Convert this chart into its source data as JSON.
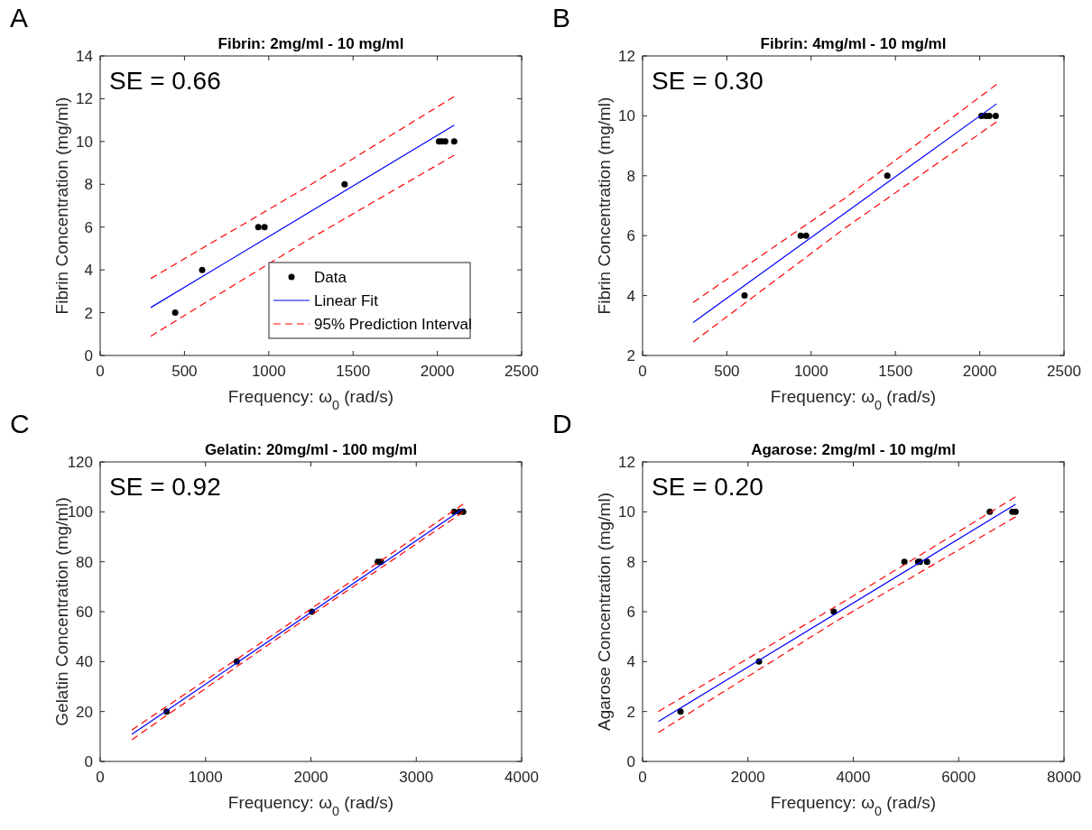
{
  "chart_data": [
    {
      "type": "scatter",
      "title": "Fibrin: 2mg/ml - 10 mg/ml",
      "xlabel": "Frequency: ω$_{0}$ (rad/s)",
      "ylabel": "Fibrin Concentration (mg/ml)",
      "xlim": [
        0,
        2500
      ],
      "ylim": [
        0,
        14
      ],
      "xticks": [
        0,
        500,
        1000,
        1500,
        2000,
        2500
      ],
      "yticks": [
        0,
        2,
        4,
        6,
        8,
        10,
        12,
        14
      ],
      "annotations": [
        "A",
        "SE = 0.66"
      ],
      "legend": "bottom right",
      "series": [
        {
          "type": "scatter",
          "name": "Data",
          "color": "#000000",
          "marker": "circle",
          "x": [
            445,
            605,
            938,
            975,
            1450,
            2010,
            2026,
            2047,
            2100
          ],
          "values": [
            2,
            4,
            6,
            6,
            8,
            10,
            10,
            10,
            10
          ]
        },
        {
          "type": "line",
          "name": "Linear Fit",
          "color": "#0000ff",
          "x": [
            300,
            2100
          ],
          "values": [
            2.24,
            10.76
          ]
        },
        {
          "type": "line",
          "name": "95% Prediction Interval",
          "color": "#ff0000",
          "line_style": "dashed",
          "x": [
            300,
            1200,
            2100
          ],
          "values": [
            3.6,
            7.75,
            12.1
          ]
        },
        {
          "type": "line",
          "color": "#ff0000",
          "line_style": "dashed",
          "x": [
            300,
            1200,
            2100
          ],
          "values": [
            0.9,
            5.25,
            9.36
          ]
        }
      ]
    },
    {
      "type": "scatter",
      "title": "Fibrin: 4mg/ml - 10 mg/ml",
      "xlabel": "Frequency: ω$_{0}$ (rad/s)",
      "ylabel": "Fibrin Concentration (mg/ml)",
      "xlim": [
        0,
        2500
      ],
      "ylim": [
        2,
        12
      ],
      "xticks": [
        0,
        500,
        1000,
        1500,
        2000,
        2500
      ],
      "yticks": [
        2,
        4,
        6,
        8,
        10,
        12
      ],
      "annotations": [
        "B",
        "SE = 0.30"
      ],
      "series": [
        {
          "type": "scatter",
          "color": "#000000",
          "marker": "circle",
          "x": [
            605,
            938,
            970,
            1452,
            2010,
            2036,
            2057,
            2095
          ],
          "values": [
            4,
            6,
            6,
            8,
            10,
            10,
            10,
            10
          ]
        },
        {
          "type": "line",
          "color": "#0000ff",
          "x": [
            300,
            2100
          ],
          "values": [
            3.1,
            10.4
          ]
        },
        {
          "type": "line",
          "color": "#ff0000",
          "line_style": "dashed",
          "x": [
            300,
            1200,
            2100
          ],
          "values": [
            3.77,
            7.25,
            11.05
          ]
        },
        {
          "type": "line",
          "color": "#ff0000",
          "line_style": "dashed",
          "x": [
            300,
            1200,
            2100
          ],
          "values": [
            2.45,
            6.25,
            9.8
          ]
        }
      ]
    },
    {
      "type": "scatter",
      "title": "Gelatin: 20mg/ml - 100 mg/ml",
      "xlabel": "Frequency: ω$_{0}$ (rad/s)",
      "ylabel": "Gelatin Concentration (mg/ml)",
      "xlim": [
        0,
        4000
      ],
      "ylim": [
        0,
        120
      ],
      "xticks": [
        0,
        1000,
        2000,
        3000,
        4000
      ],
      "yticks": [
        0,
        20,
        40,
        60,
        80,
        100,
        120
      ],
      "annotations": [
        "C",
        "SE = 0.92"
      ],
      "series": [
        {
          "type": "scatter",
          "color": "#000000",
          "marker": "circle",
          "x": [
            630,
            1297,
            2010,
            2635,
            2665,
            3360,
            3410,
            3445
          ],
          "values": [
            20,
            40,
            60,
            80,
            80,
            100,
            100,
            100
          ]
        },
        {
          "type": "line",
          "color": "#0000ff",
          "x": [
            300,
            3445
          ],
          "values": [
            10.8,
            101.3
          ]
        },
        {
          "type": "line",
          "color": "#ff0000",
          "line_style": "dashed",
          "x": [
            300,
            1870,
            3445
          ],
          "values": [
            12.6,
            57.3,
            103.1
          ]
        },
        {
          "type": "line",
          "color": "#ff0000",
          "line_style": "dashed",
          "x": [
            300,
            1870,
            3445
          ],
          "values": [
            8.7,
            54.8,
            99.9
          ]
        }
      ]
    },
    {
      "type": "scatter",
      "title": "Agarose: 2mg/ml - 10 mg/ml",
      "xlabel": "Frequency: ω$_{0}$ (rad/s)",
      "ylabel": "Agarose Concentration (mg/ml)",
      "xlim": [
        0,
        8000
      ],
      "ylim": [
        0,
        12
      ],
      "xticks": [
        0,
        2000,
        4000,
        6000,
        8000
      ],
      "yticks": [
        0,
        2,
        4,
        6,
        8,
        10,
        12
      ],
      "annotations": [
        "D",
        "SE = 0.20"
      ],
      "series": [
        {
          "type": "scatter",
          "color": "#000000",
          "marker": "circle",
          "x": [
            720,
            2210,
            3630,
            4970,
            5230,
            5265,
            5400,
            6590,
            7020,
            7080
          ],
          "values": [
            2,
            4,
            6,
            8,
            8,
            8,
            8,
            10,
            10,
            10
          ]
        },
        {
          "type": "line",
          "color": "#0000ff",
          "x": [
            300,
            7080
          ],
          "values": [
            1.6,
            10.3
          ]
        },
        {
          "type": "line",
          "color": "#ff0000",
          "line_style": "dashed",
          "x": [
            300,
            3700,
            7080
          ],
          "values": [
            2.0,
            6.25,
            10.6
          ]
        },
        {
          "type": "line",
          "color": "#ff0000",
          "line_style": "dashed",
          "x": [
            300,
            3700,
            7080
          ],
          "values": [
            1.16,
            5.65,
            9.8
          ]
        }
      ]
    }
  ]
}
